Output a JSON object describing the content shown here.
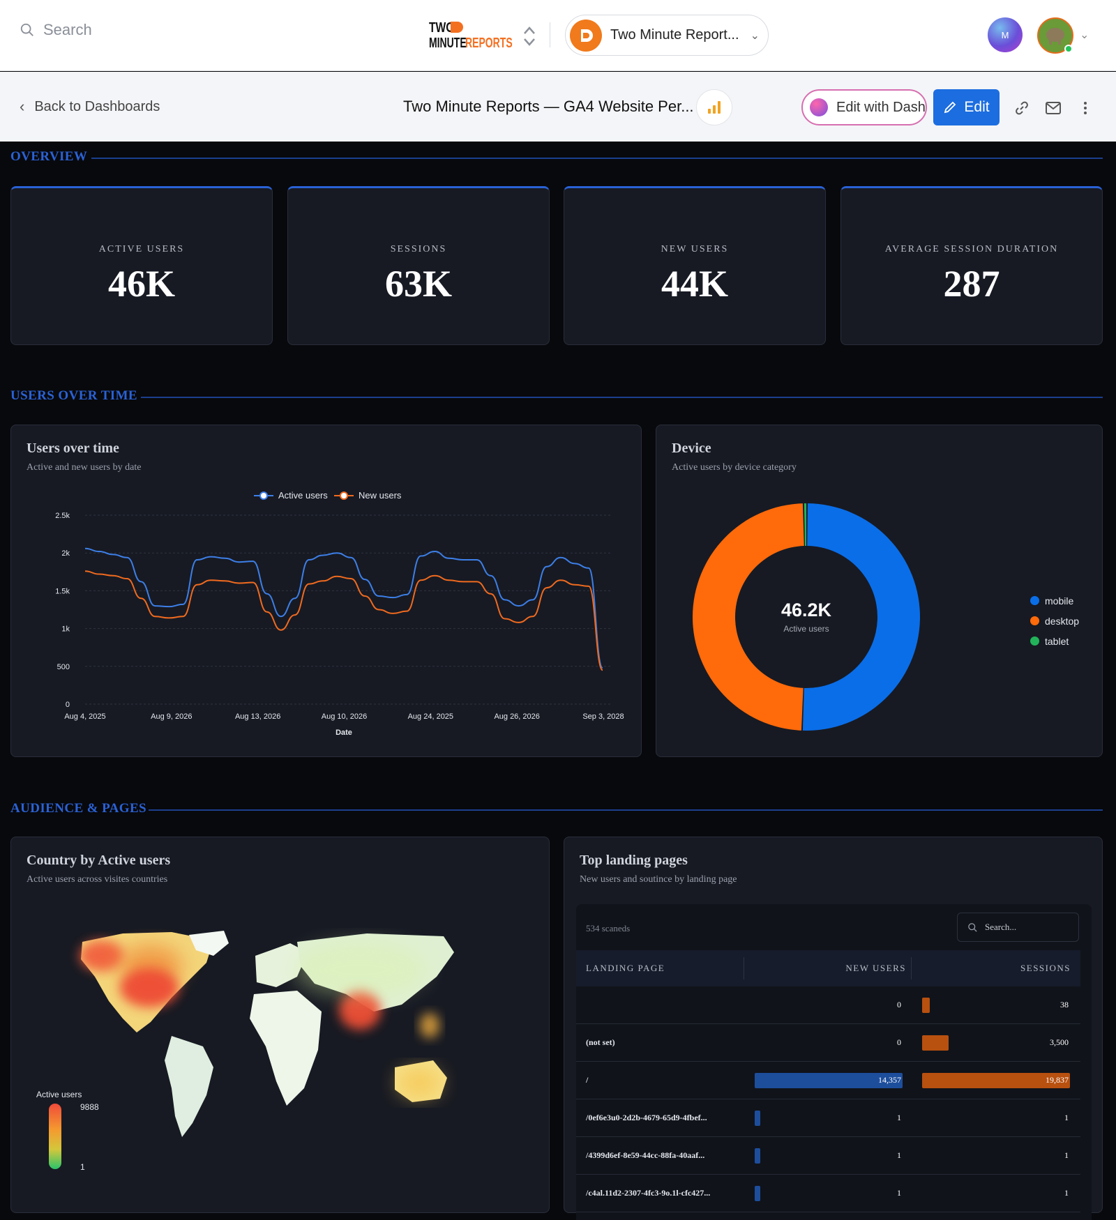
{
  "topbar": {
    "search_placeholder": "Search",
    "brand_line1": "TWO",
    "brand_line2a": "MINUTE",
    "brand_line2b": "REPORTS",
    "workspace_name": "Two Minute Report...",
    "avatar_letter": "M"
  },
  "subbar": {
    "back_label": "Back to Dashboards",
    "dashboard_title": "Two Minute Reports — GA4 Website Per...",
    "edit_with_dash": "Edit with Dash",
    "edit": "Edit"
  },
  "sections": {
    "overview": "OVERVIEW",
    "users_over_time": "USERS OVER TIME",
    "audience_pages": "AUDIENCE & PAGES"
  },
  "kpis": [
    {
      "label": "ACTIVE USERS",
      "value": "46K"
    },
    {
      "label": "SESSIONS",
      "value": "63K"
    },
    {
      "label": "NEW USERS",
      "value": "44K"
    },
    {
      "label": "AVERAGE SESSION DURATION",
      "value": "287"
    }
  ],
  "users_chart": {
    "title": "Users over time",
    "subtitle": "Active and new users by date",
    "chart_data": {
      "type": "line",
      "xlabel": "Date",
      "ylabel": "",
      "ylim": [
        0,
        2500
      ],
      "y_ticks": [
        "0",
        "500",
        "1k",
        "1.5k",
        "2k",
        "2.5k"
      ],
      "x_ticks": [
        "Aug 4, 2025",
        "Aug 9, 2026",
        "Aug 13, 2026",
        "Aug 10, 2026",
        "Aug 24, 2025",
        "Aug 26, 2026",
        "Sep 3, 2028"
      ],
      "grid": true,
      "legend_position": "top-center",
      "series": [
        {
          "name": "Active users",
          "color": "#3d7fe8",
          "values": [
            2060,
            2020,
            1980,
            1940,
            1620,
            1300,
            1290,
            1320,
            1910,
            1950,
            1930,
            1880,
            1890,
            1460,
            1160,
            1400,
            1910,
            1970,
            2000,
            1940,
            1650,
            1430,
            1410,
            1450,
            1960,
            2020,
            1930,
            1910,
            1910,
            1700,
            1380,
            1300,
            1380,
            1820,
            1940,
            1860,
            1800,
            480
          ]
        },
        {
          "name": "New users",
          "color": "#f06a1f",
          "values": [
            1760,
            1720,
            1700,
            1660,
            1400,
            1160,
            1140,
            1160,
            1580,
            1640,
            1630,
            1600,
            1610,
            1220,
            980,
            1180,
            1590,
            1630,
            1690,
            1660,
            1430,
            1250,
            1200,
            1230,
            1640,
            1700,
            1640,
            1620,
            1620,
            1460,
            1130,
            1080,
            1160,
            1540,
            1640,
            1580,
            1560,
            450
          ]
        }
      ]
    }
  },
  "device_chart": {
    "title": "Device",
    "subtitle": "Active users by device category",
    "center_value": "46.2K",
    "center_label": "Active users",
    "chart_data": {
      "type": "pie",
      "labels": [
        "mobile",
        "desktop",
        "tablet"
      ],
      "values": [
        50.5,
        49.0,
        0.5
      ],
      "colors": [
        "#0a6ee8",
        "#ff6a0a",
        "#22b35a"
      ],
      "legend_position": "right"
    }
  },
  "country_map": {
    "title": "Country by Active users",
    "subtitle": "Active users across visites countries",
    "legend_title": "Active users",
    "legend_max": "9888",
    "legend_min": "1"
  },
  "landing": {
    "title": "Top landing pages",
    "subtitle": "New users and soutince by landing page",
    "count_text": "534 scaneds",
    "search_placeholder": "Search...",
    "columns": [
      "LANDING PAGE",
      "NEW USERS",
      "SESSIONS"
    ],
    "rows": [
      {
        "page": "",
        "new_users": "0",
        "sessions": "38",
        "nu_frac": 0,
        "s_frac": 0.05
      },
      {
        "page": "(not set)",
        "new_users": "0",
        "sessions": "3,500",
        "nu_frac": 0,
        "s_frac": 0.18
      },
      {
        "page": "/",
        "new_users": "14,357",
        "sessions": "19,837",
        "nu_frac": 1,
        "s_frac": 1
      },
      {
        "page": "/0ef6e3u0-2d2b-4679-65d9-4fbef...",
        "new_users": "1",
        "sessions": "1",
        "nu_frac": 0.04,
        "s_frac": 0
      },
      {
        "page": "/4399d6ef-8e59-44cc-88fa-40aaf...",
        "new_users": "1",
        "sessions": "1",
        "nu_frac": 0.04,
        "s_frac": 0
      },
      {
        "page": "/c4al.11d2-2307-4fc3-9o.1l-cfc427...",
        "new_users": "1",
        "sessions": "1",
        "nu_frac": 0.04,
        "s_frac": 0
      }
    ]
  },
  "colors": {
    "accent_blue": "#2a62d6",
    "edit_button": "#1c6de0",
    "active_users": "#3d7fe8",
    "new_users": "#f06a1f"
  },
  "icons": [
    "search-icon",
    "brand-logo",
    "updown-chevron-icon",
    "workspace-logo-icon",
    "chevron-down-icon",
    "back-chevron-icon",
    "bar-chart-icon",
    "pencil-icon",
    "link-icon",
    "mail-icon",
    "more-vertical-icon"
  ]
}
